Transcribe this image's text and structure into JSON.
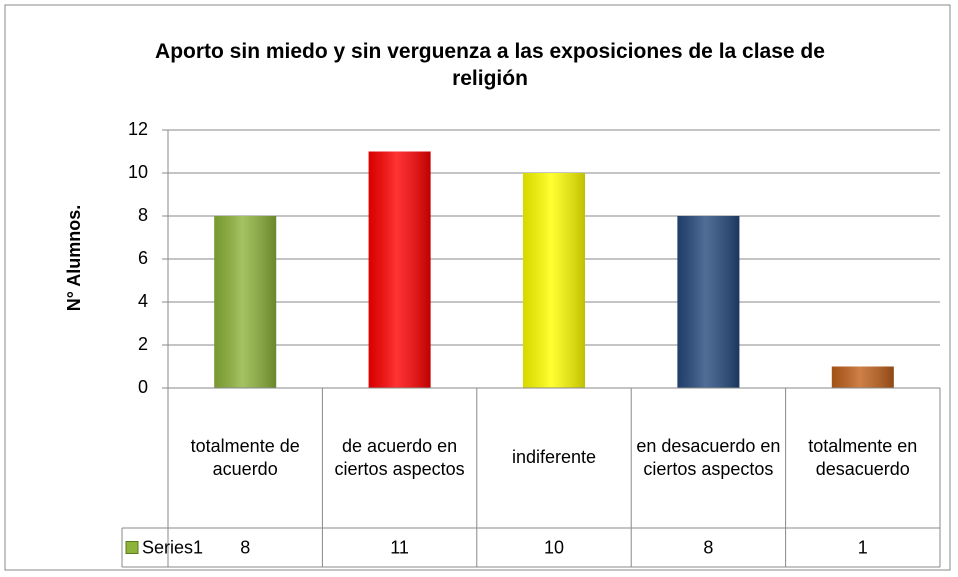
{
  "chart_data": {
    "type": "bar",
    "title": "Aporto sin miedo y sin verguenza a las exposiciones de la clase de religión",
    "y_axis_label": "N° Alumnos.",
    "categories": [
      "totalmente de acuerdo",
      "de acuerdo en ciertos aspectos",
      "indiferente",
      "en desacuerdo en ciertos aspectos",
      "totalmente en desacuerdo"
    ],
    "series": [
      {
        "name": "Series1",
        "color": "#8db33a",
        "values": [
          8,
          11,
          10,
          8,
          1
        ]
      }
    ],
    "point_colors": [
      "#8db33a",
      "#ff0000",
      "#ffff00",
      "#24497c",
      "#c0601a"
    ],
    "ylim": [
      0,
      12
    ],
    "yticks": [
      0,
      2,
      4,
      6,
      8,
      10,
      12
    ],
    "grid": true,
    "data_table": true
  }
}
